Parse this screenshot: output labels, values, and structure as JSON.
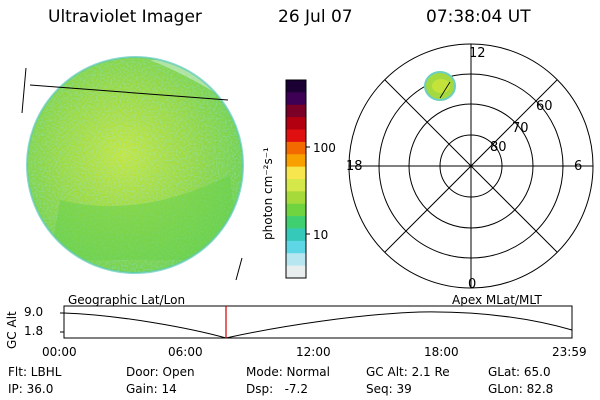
{
  "header": {
    "title": "Ultraviolet Imager",
    "date": "26 Jul 07",
    "time": "07:38:04 UT"
  },
  "colorbar": {
    "unit_label": "photon cm⁻²s⁻¹",
    "ticks": [
      "100",
      "10"
    ],
    "colors": [
      "#1a0033",
      "#3d0055",
      "#7a0028",
      "#b30010",
      "#e01010",
      "#f26a00",
      "#f7a000",
      "#f7e64d",
      "#d4e84a",
      "#a6d93a",
      "#6fd440",
      "#3fcf70",
      "#34c9b8",
      "#5fd6e6",
      "#b8e6f0",
      "#e8eeee"
    ]
  },
  "polar_plot": {
    "mlt_labels": {
      "top": "12",
      "left": "18",
      "right": "6",
      "bottom": "0"
    },
    "lat_labels": [
      "60",
      "70",
      "80"
    ]
  },
  "timeline": {
    "ylabel": "GC Alt",
    "y_ticks": [
      "9.0",
      "1.8"
    ],
    "left_title": "Geographic Lat/Lon",
    "right_title": "Apex MLat/MLT",
    "x_ticks": [
      "00:00",
      "06:00",
      "12:00",
      "18:00",
      "23:59"
    ],
    "current_marker_color": "#d00000"
  },
  "info": {
    "row1": [
      "Flt: LBHL",
      "Door: Open",
      "Mode: Normal",
      "GC Alt: 2.1 Re",
      "GLat: 65.0"
    ],
    "row2": [
      "IP: 36.0",
      "Gain: 14",
      "Dsp:   -7.2",
      "Seq: 39",
      "GLon: 82.8"
    ]
  }
}
